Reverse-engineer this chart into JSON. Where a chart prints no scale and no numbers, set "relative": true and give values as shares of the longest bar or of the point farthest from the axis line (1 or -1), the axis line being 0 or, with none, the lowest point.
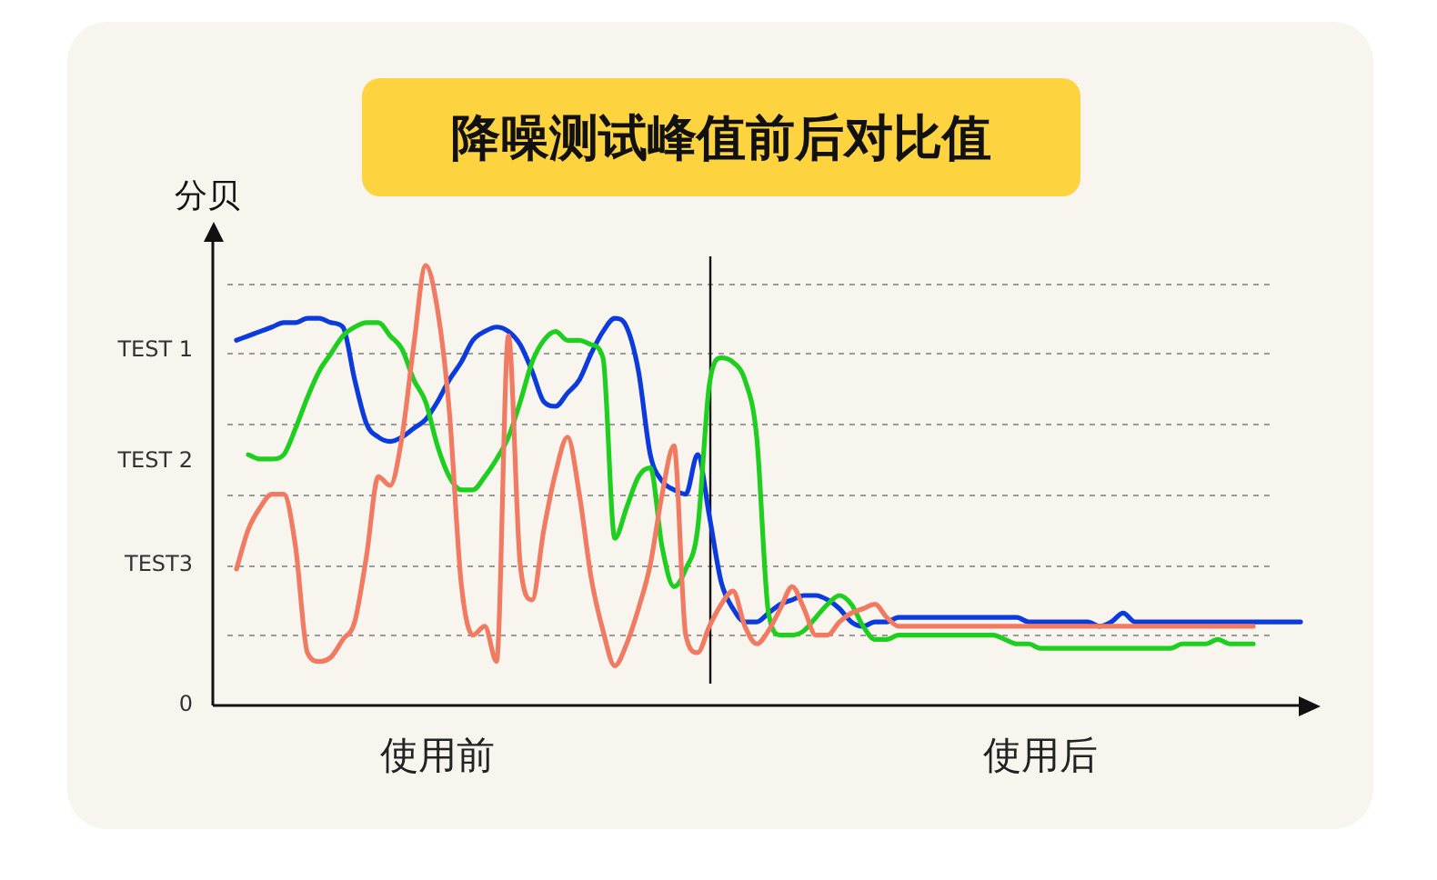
{
  "chart_data": {
    "type": "line",
    "title": "降噪测试峰值前后对比值",
    "ylabel": "分贝",
    "relative": true,
    "categories": [
      null,
      null,
      null,
      null,
      null,
      null,
      null,
      null,
      null,
      null,
      null,
      null,
      null,
      null,
      null,
      null,
      null,
      null,
      null,
      "使用前",
      null,
      null,
      null,
      null,
      null,
      null,
      null,
      null,
      null,
      null,
      null,
      null,
      null,
      null,
      null,
      null,
      null,
      null,
      null,
      null,
      null,
      null,
      null,
      null,
      null,
      null,
      null,
      null,
      null,
      null,
      null,
      null,
      null,
      null,
      null,
      null,
      null,
      null,
      null,
      null,
      null,
      null,
      null,
      null,
      null,
      null,
      null,
      null,
      null,
      null,
      "使用后",
      null,
      null,
      null,
      null,
      null,
      null,
      null,
      null,
      null,
      null,
      null,
      null,
      null,
      null,
      null,
      null,
      null,
      null,
      null,
      null,
      null,
      null,
      null
    ],
    "annotations": [
      "0",
      "TEST3",
      "TEST 2",
      "TEST 1"
    ],
    "ref_lines": [
      {
        "axis": "y",
        "value": 0.16,
        "color": "#9a9a9a",
        "line_style": "dashed"
      },
      {
        "axis": "y",
        "value": 0.32,
        "color": "#9a9a9a",
        "line_style": "dashed"
      },
      {
        "axis": "y",
        "value": 0.48,
        "color": "#9a9a9a",
        "line_style": "dashed"
      },
      {
        "axis": "y",
        "value": 0.64,
        "color": "#9a9a9a",
        "line_style": "dashed"
      },
      {
        "axis": "y",
        "value": 0.8,
        "color": "#9a9a9a",
        "line_style": "dashed"
      },
      {
        "axis": "y",
        "value": 0.96,
        "color": "#9a9a9a",
        "line_style": "dashed"
      }
    ],
    "series": [
      {
        "color": "#f17b62",
        "values": [
          null,
          null,
          0.31,
          0.4,
          0.45,
          0.48,
          0.48,
          0.36,
          0.12,
          0.1,
          0.11,
          0.15,
          0.19,
          0.34,
          0.52,
          0.5,
          0.61,
          0.82,
          1.0,
          0.9,
          0.67,
          0.28,
          0.16,
          0.18,
          0.1,
          0.84,
          0.32,
          0.24,
          0.4,
          0.53,
          0.61,
          0.48,
          0.29,
          0.17,
          0.09,
          0.14,
          0.22,
          0.32,
          0.48,
          0.59,
          0.16,
          0.12,
          0.18,
          0.23,
          0.26,
          0.18,
          0.14,
          0.17,
          0.22,
          0.27,
          0.22,
          0.16,
          0.16,
          0.19,
          0.21,
          0.22,
          0.23,
          0.2,
          0.18,
          0.18,
          0.18,
          0.18,
          0.18,
          0.18,
          0.18,
          0.18,
          0.18,
          0.18,
          0.18,
          0.18,
          0.18,
          0.18,
          0.18,
          0.18,
          0.18,
          0.18,
          0.18,
          0.18,
          0.18,
          0.18,
          0.18,
          0.18,
          0.18,
          0.18,
          0.18,
          0.18,
          0.18,
          0.18,
          0.18,
          null,
          null,
          null,
          null,
          null
        ]
      },
      {
        "color": "#1fcf1f",
        "values": [
          null,
          null,
          null,
          0.57,
          0.56,
          0.56,
          0.57,
          0.63,
          0.7,
          0.76,
          0.8,
          0.84,
          0.86,
          0.87,
          0.87,
          0.84,
          0.81,
          0.74,
          0.69,
          0.59,
          0.52,
          0.49,
          0.49,
          0.52,
          0.56,
          0.61,
          0.69,
          0.78,
          0.83,
          0.85,
          0.83,
          0.83,
          0.82,
          0.79,
          0.38,
          0.45,
          0.52,
          0.54,
          0.36,
          0.27,
          0.31,
          0.4,
          0.73,
          0.79,
          0.78,
          0.74,
          0.61,
          0.21,
          0.16,
          0.16,
          0.17,
          0.2,
          0.23,
          0.25,
          0.23,
          0.18,
          0.15,
          0.15,
          0.16,
          0.16,
          0.16,
          0.16,
          0.16,
          0.16,
          0.16,
          0.16,
          0.16,
          0.15,
          0.14,
          0.14,
          0.13,
          0.13,
          0.13,
          0.13,
          0.13,
          0.13,
          0.13,
          0.13,
          0.13,
          0.13,
          0.13,
          0.13,
          0.14,
          0.14,
          0.14,
          0.15,
          0.14,
          0.14,
          0.14,
          null,
          null,
          null,
          null,
          null
        ]
      },
      {
        "color": "#0b3bdc",
        "values": [
          null,
          null,
          0.83,
          0.84,
          0.85,
          0.86,
          0.87,
          0.87,
          0.88,
          0.88,
          0.87,
          0.86,
          0.74,
          0.64,
          0.61,
          0.6,
          0.61,
          0.63,
          0.65,
          0.69,
          0.74,
          0.78,
          0.83,
          0.85,
          0.86,
          0.85,
          0.82,
          0.76,
          0.69,
          0.68,
          0.71,
          0.74,
          0.8,
          0.85,
          0.88,
          0.86,
          0.76,
          0.57,
          0.51,
          0.49,
          0.48,
          0.57,
          0.43,
          0.28,
          0.22,
          0.19,
          0.19,
          0.21,
          0.23,
          0.24,
          0.25,
          0.25,
          0.24,
          0.22,
          0.19,
          0.18,
          0.19,
          0.19,
          0.2,
          0.2,
          0.2,
          0.2,
          0.2,
          0.2,
          0.2,
          0.2,
          0.2,
          0.2,
          0.2,
          0.19,
          0.19,
          0.19,
          0.19,
          0.19,
          0.19,
          0.18,
          0.19,
          0.21,
          0.19,
          0.19,
          0.19,
          0.19,
          0.19,
          0.19,
          0.19,
          0.19,
          0.19,
          0.19,
          0.19,
          0.19,
          0.19,
          0.19,
          0.19,
          null
        ]
      }
    ]
  }
}
